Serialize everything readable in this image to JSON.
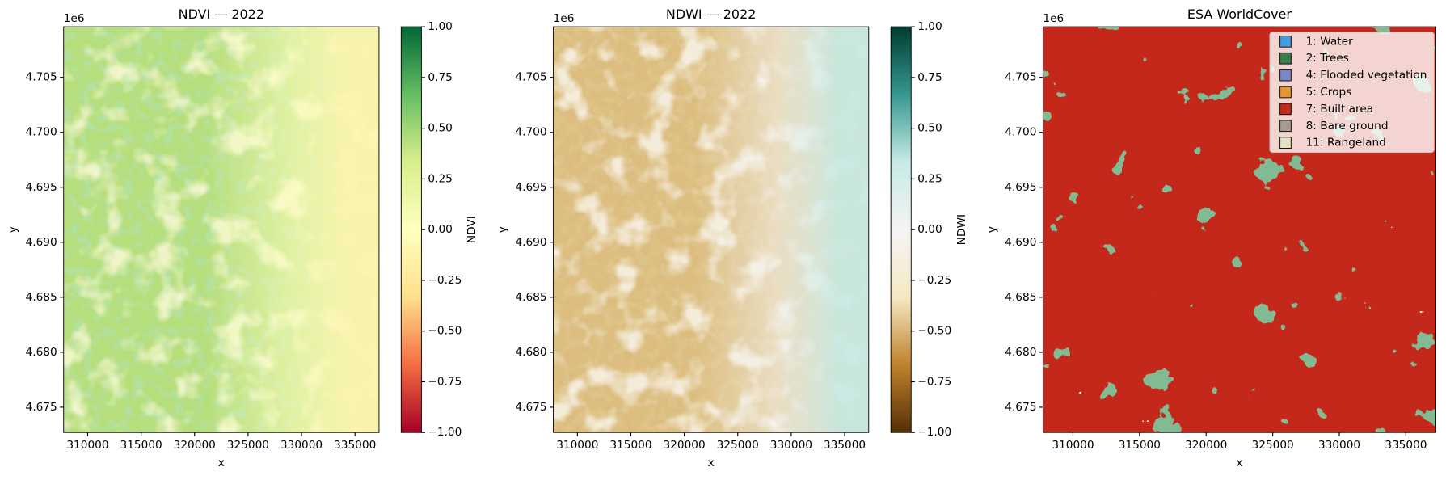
{
  "chart_data": [
    {
      "type": "raster",
      "title": "NDVI — 2022",
      "x_label": "x",
      "y_label": "y",
      "y_offset_label": "1e6",
      "xlim": [
        307750,
        337250
      ],
      "xticks": [
        310000,
        315000,
        320000,
        325000,
        330000,
        335000
      ],
      "ylim": [
        4.6727,
        4.7096
      ],
      "yticks": [
        4.675,
        {
          "value": 4.68,
          "label": "4.680"
        },
        4.685,
        {
          "value": 4.69,
          "label": "4.690"
        },
        4.695,
        {
          "value": 4.7,
          "label": "4.700"
        },
        4.705
      ],
      "colormap": "RdYlGn",
      "colorbar": {
        "label": "NDVI",
        "lim": [
          -1,
          1
        ],
        "ticks": [
          {
            "value": -1,
            "label": "−1.00"
          },
          {
            "value": -0.75,
            "label": "−0.75"
          },
          {
            "value": -0.5,
            "label": "−0.50"
          },
          {
            "value": -0.25,
            "label": "−0.25"
          },
          {
            "value": 0,
            "label": "0.00"
          },
          {
            "value": 0.25,
            "label": "0.25"
          },
          {
            "value": 0.5,
            "label": "0.50"
          },
          {
            "value": 0.75,
            "label": "0.75"
          },
          {
            "value": 1,
            "label": "1.00"
          }
        ]
      }
    },
    {
      "type": "raster",
      "title": "NDWI — 2022",
      "x_label": "x",
      "y_label": "y",
      "y_offset_label": "1e6",
      "xlim": [
        307750,
        337250
      ],
      "xticks": [
        310000,
        315000,
        320000,
        325000,
        330000,
        335000
      ],
      "ylim": [
        4.6727,
        4.7096
      ],
      "yticks": [
        4.675,
        {
          "value": 4.68,
          "label": "4.680"
        },
        4.685,
        {
          "value": 4.69,
          "label": "4.690"
        },
        4.695,
        {
          "value": 4.7,
          "label": "4.700"
        },
        4.705
      ],
      "colormap": "BrBG",
      "colorbar": {
        "label": "NDWI",
        "lim": [
          -1,
          1
        ],
        "ticks": [
          {
            "value": -1,
            "label": "−1.00"
          },
          {
            "value": -0.75,
            "label": "−0.75"
          },
          {
            "value": -0.5,
            "label": "−0.50"
          },
          {
            "value": -0.25,
            "label": "−0.25"
          },
          {
            "value": 0,
            "label": "0.00"
          },
          {
            "value": 0.25,
            "label": "0.25"
          },
          {
            "value": 0.5,
            "label": "0.50"
          },
          {
            "value": 0.75,
            "label": "0.75"
          },
          {
            "value": 1,
            "label": "1.00"
          }
        ]
      }
    },
    {
      "type": "classmap",
      "title": "ESA WorldCover",
      "x_label": "x",
      "y_label": "y",
      "y_offset_label": "1e6",
      "xlim": [
        307750,
        337250
      ],
      "xticks": [
        310000,
        315000,
        320000,
        325000,
        330000,
        335000
      ],
      "ylim": [
        4.6727,
        4.7096
      ],
      "yticks": [
        4.675,
        {
          "value": 4.68,
          "label": "4.680"
        },
        4.685,
        {
          "value": 4.69,
          "label": "4.690"
        },
        4.695,
        {
          "value": 4.7,
          "label": "4.700"
        },
        4.705
      ],
      "legend": {
        "loc": "upper right",
        "items": [
          {
            "name": "1: Water",
            "color": "#419bdf"
          },
          {
            "name": "2: Trees",
            "color": "#397d49"
          },
          {
            "name": "4: Flooded vegetation",
            "color": "#7a87c6"
          },
          {
            "name": "5: Crops",
            "color": "#e49635"
          },
          {
            "name": "7: Built area",
            "color": "#c4281b"
          },
          {
            "name": "8: Bare ground",
            "color": "#a59b8f"
          },
          {
            "name": "11: Rangeland",
            "color": "#e3e2c3"
          }
        ]
      }
    }
  ]
}
